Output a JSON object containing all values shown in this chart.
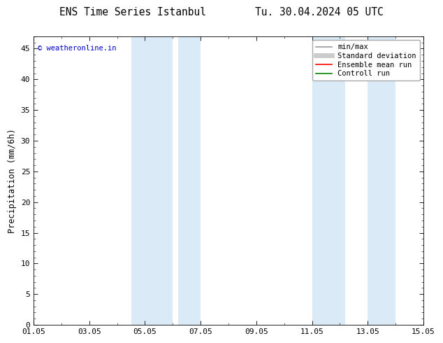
{
  "title": "ENS Time Series Istanbul        Tu. 30.04.2024 05 UTC",
  "ylabel": "Precipitation (mm/6h)",
  "xlabel": "",
  "ylim": [
    0,
    47
  ],
  "yticks": [
    0,
    5,
    10,
    15,
    20,
    25,
    30,
    35,
    40,
    45
  ],
  "xtick_labels": [
    "01.05",
    "03.05",
    "05.05",
    "07.05",
    "09.05",
    "11.05",
    "13.05",
    "15.05"
  ],
  "xtick_positions": [
    0,
    2,
    4,
    6,
    8,
    10,
    12,
    14
  ],
  "shaded_regions": [
    {
      "x_start": 3.5,
      "x_end": 5.0,
      "color": "#daeaf7"
    },
    {
      "x_start": 5.2,
      "x_end": 6.0,
      "color": "#daeaf7"
    },
    {
      "x_start": 10.0,
      "x_end": 11.2,
      "color": "#daeaf7"
    },
    {
      "x_start": 12.0,
      "x_end": 13.0,
      "color": "#daeaf7"
    }
  ],
  "watermark_text": "© weatheronline.in",
  "watermark_color": "#0000cc",
  "bg_color": "#ffffff",
  "plot_bg_color": "#ffffff",
  "legend_items": [
    {
      "label": "min/max",
      "color": "#999999",
      "lw": 1.2,
      "style": "solid"
    },
    {
      "label": "Standard deviation",
      "color": "#cccccc",
      "lw": 5,
      "style": "solid"
    },
    {
      "label": "Ensemble mean run",
      "color": "#ff0000",
      "lw": 1.2,
      "style": "solid"
    },
    {
      "label": "Controll run",
      "color": "#008800",
      "lw": 1.2,
      "style": "solid"
    }
  ],
  "title_fontsize": 10.5,
  "axis_fontsize": 8.5,
  "tick_fontsize": 8,
  "legend_fontsize": 7.5
}
